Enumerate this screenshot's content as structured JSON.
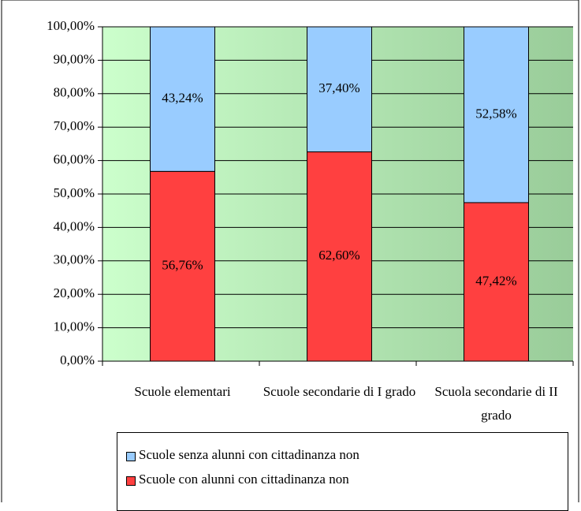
{
  "chart_data": {
    "type": "stacked_bar",
    "categories": [
      "Scuole elementari",
      "Scuole secondarie di I grado",
      "Scuola secondarie di II grado"
    ],
    "series": [
      {
        "name": "Scuole con alunni con cittadinanza non",
        "color": "#ff4040",
        "values": [
          56.76,
          62.6,
          47.42
        ],
        "value_labels": [
          "56,76%",
          "62,60%",
          "47,42%"
        ]
      },
      {
        "name": "Scuole senza alunni con cittadinanza non",
        "color": "#99ccff",
        "values": [
          43.24,
          37.4,
          52.58
        ],
        "value_labels": [
          "43,24%",
          "37,40%",
          "52,58%"
        ]
      }
    ],
    "ylim": [
      0,
      100
    ],
    "yticks": [
      {
        "value": 0,
        "label": "0,00%"
      },
      {
        "value": 10,
        "label": "10,00%"
      },
      {
        "value": 20,
        "label": "20,00%"
      },
      {
        "value": 30,
        "label": "30,00%"
      },
      {
        "value": 40,
        "label": "40,00%"
      },
      {
        "value": 50,
        "label": "50,00%"
      },
      {
        "value": 60,
        "label": "60,00%"
      },
      {
        "value": 70,
        "label": "70,00%"
      },
      {
        "value": 80,
        "label": "80,00%"
      },
      {
        "value": 90,
        "label": "90,00%"
      },
      {
        "value": 100,
        "label": "100,00%"
      }
    ],
    "grid": true
  }
}
